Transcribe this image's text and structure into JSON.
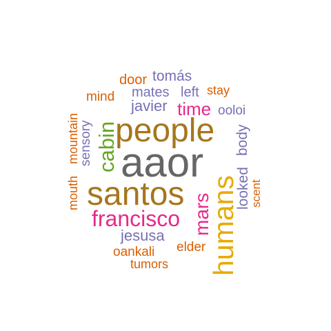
{
  "colors": {
    "gray": "#666666",
    "brown": "#a6761d",
    "orange": "#d95f02",
    "purple": "#7570b3",
    "magenta": "#e7298a",
    "green": "#66a61e",
    "gold": "#e6ab02"
  },
  "words": {
    "aaor": "aaor",
    "people": "people",
    "santos": "santos",
    "francisco": "francisco",
    "humans": "humans",
    "cabin": "cabin",
    "mars": "mars",
    "time": "time",
    "javier": "javier",
    "mates": "mates",
    "left": "left",
    "stay": "stay",
    "tomas": "tomás",
    "door": "door",
    "mind": "mind",
    "ooloi": "ooloi",
    "body": "body",
    "looked": "looked",
    "scent": "scent",
    "sensory": "sensory",
    "mountain": "mountain",
    "mouth": "mouth",
    "jesusa": "jesusa",
    "elder": "elder",
    "oankali": "oankali",
    "tumors": "tumors"
  }
}
